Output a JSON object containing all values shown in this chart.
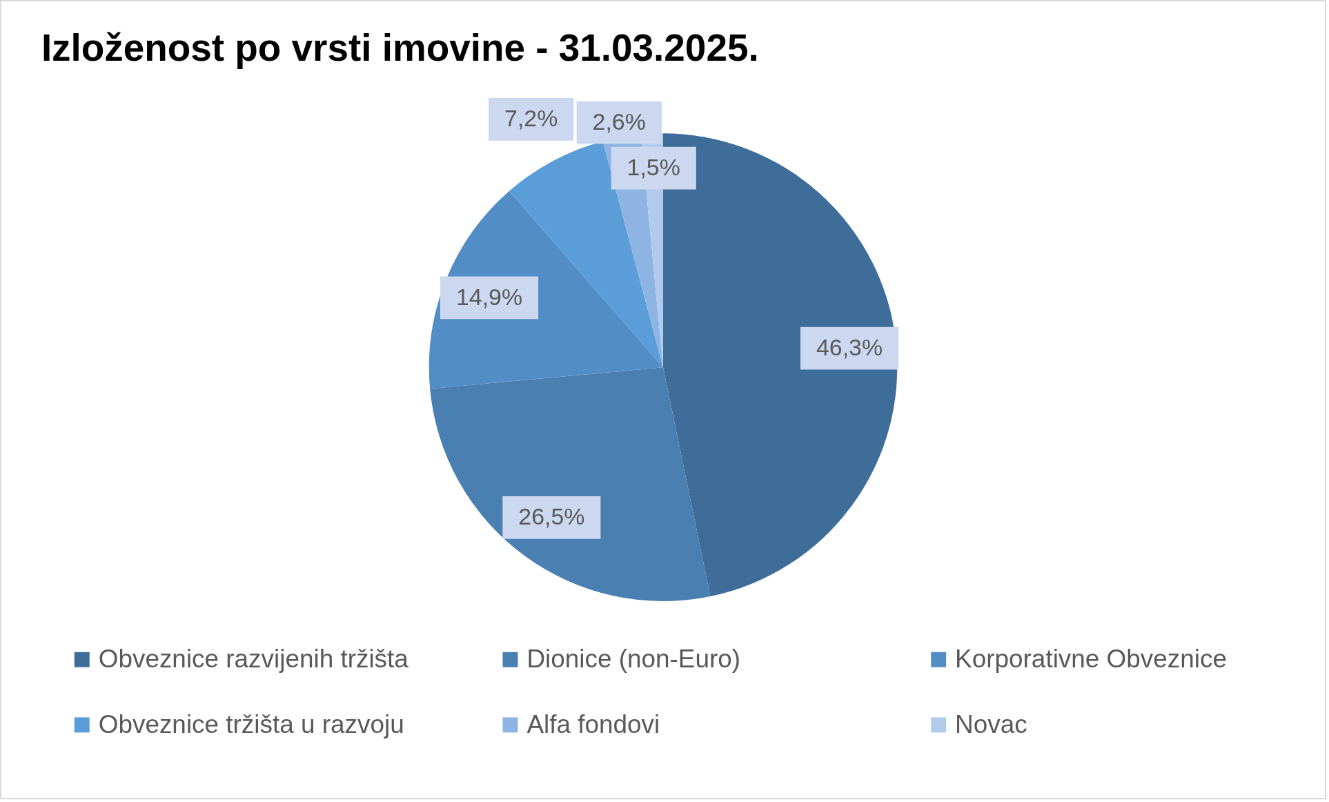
{
  "chart_data": {
    "type": "pie",
    "title": "Izloženost po vrsti imovine - 31.03.2025.",
    "categories": [
      "Obveznice razvijenih tržišta",
      "Dionice (non-Euro)",
      "Korporativne Obveznice",
      "Obveznice tržišta u razvoju",
      "Alfa fondovi",
      "Novac"
    ],
    "values": [
      46.3,
      26.5,
      14.9,
      7.2,
      2.6,
      1.5
    ],
    "colors": [
      "#3e6d99",
      "#4a7fb1",
      "#538dc5",
      "#5b9dd8",
      "#8eb4e3",
      "#b0cbec"
    ],
    "value_labels": [
      "46,3%",
      "26,5%",
      "14,9%",
      "7,2%",
      "2,6%",
      "1,5%"
    ],
    "legend": "bottom"
  }
}
